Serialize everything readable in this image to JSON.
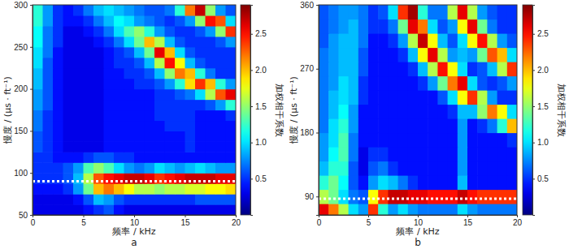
{
  "chart_data": [
    {
      "type": "heatmap",
      "label": "a",
      "x_label": "频率 / kHz",
      "y_label": "慢度 / (μs · ft⁻¹)",
      "colorbar_label": "加权相干系数",
      "xlim": [
        0,
        20
      ],
      "xticks": [
        0,
        5,
        10,
        15,
        20
      ],
      "ylim": [
        50,
        300
      ],
      "yticks": [
        50,
        100,
        150,
        200,
        250,
        300
      ],
      "colorbar_range": [
        0,
        2.9
      ],
      "colorbar_ticks": [
        0.5,
        {
          "value": 1,
          "label": "1.0"
        },
        1.5,
        {
          "value": 2,
          "label": "2.0"
        },
        2.5
      ],
      "reference_line": {
        "value": 90,
        "color": "#ffffff",
        "line_style": "dotted"
      },
      "x_edges": [
        0,
        1,
        2,
        3,
        4,
        5,
        6,
        7,
        8,
        9,
        10,
        11,
        12,
        13,
        14,
        15,
        16,
        17,
        18,
        19,
        20
      ],
      "y_edges": [
        50,
        62.5,
        75,
        87.5,
        100,
        112.5,
        125,
        137.5,
        150,
        162.5,
        175,
        187.5,
        200,
        212.5,
        225,
        237.5,
        250,
        262.5,
        275,
        287.5,
        300
      ],
      "z": [
        [
          0.3,
          0.3,
          0.3,
          0.3,
          0.3,
          0.4,
          0.5,
          0.6,
          0.4,
          0.3,
          0.3,
          0.3,
          0.3,
          0.3,
          0.3,
          0.3,
          0.3,
          0.3,
          0.3,
          0.3
        ],
        [
          0.3,
          0.3,
          0.3,
          0.3,
          0.4,
          0.6,
          0.9,
          0.8,
          0.6,
          0.5,
          0.5,
          0.5,
          0.5,
          0.5,
          0.5,
          0.5,
          0.6,
          0.6,
          0.6,
          0.6
        ],
        [
          0.4,
          0.4,
          0.4,
          0.5,
          0.8,
          1.4,
          2.0,
          2.2,
          2.0,
          1.8,
          1.6,
          1.6,
          1.5,
          1.6,
          1.6,
          1.7,
          1.7,
          1.8,
          1.8,
          1.9
        ],
        [
          0.5,
          0.5,
          0.5,
          0.6,
          0.9,
          1.6,
          2.3,
          2.5,
          2.6,
          2.7,
          2.7,
          2.6,
          2.4,
          2.5,
          2.6,
          2.7,
          2.7,
          2.7,
          2.6,
          2.6
        ],
        [
          0.5,
          0.5,
          0.5,
          0.6,
          0.8,
          1.3,
          1.5,
          1.3,
          1.0,
          0.8,
          0.7,
          0.8,
          1.0,
          0.9,
          0.8,
          0.9,
          1.0,
          0.9,
          0.8,
          0.8
        ],
        [
          0.5,
          0.5,
          0.4,
          0.4,
          0.4,
          0.5,
          0.6,
          0.6,
          0.5,
          0.5,
          0.4,
          0.4,
          0.4,
          0.4,
          0.4,
          0.4,
          0.4,
          0.4,
          0.4,
          0.4
        ],
        [
          0.6,
          0.5,
          0.4,
          0.3,
          0.3,
          0.3,
          0.3,
          0.4,
          0.4,
          0.4,
          0.4,
          0.4,
          0.4,
          0.4,
          0.4,
          0.5,
          0.4,
          0.4,
          0.4,
          0.4
        ],
        [
          0.6,
          0.5,
          0.4,
          0.3,
          0.3,
          0.3,
          0.3,
          0.4,
          0.4,
          0.4,
          0.4,
          0.4,
          0.4,
          0.4,
          0.4,
          0.5,
          0.4,
          0.4,
          0.4,
          0.4
        ],
        [
          0.7,
          0.5,
          0.4,
          0.3,
          0.3,
          0.3,
          0.3,
          0.4,
          0.4,
          0.4,
          0.4,
          0.4,
          0.4,
          0.5,
          0.5,
          0.5,
          0.4,
          0.4,
          0.4,
          0.4
        ],
        [
          0.7,
          0.5,
          0.4,
          0.3,
          0.3,
          0.3,
          0.3,
          0.4,
          0.4,
          0.4,
          0.4,
          0.4,
          0.5,
          0.5,
          0.5,
          0.5,
          0.4,
          0.4,
          0.4,
          0.5
        ],
        [
          0.8,
          0.6,
          0.4,
          0.3,
          0.3,
          0.3,
          0.3,
          0.4,
          0.4,
          0.4,
          0.4,
          0.4,
          0.5,
          0.5,
          0.5,
          0.5,
          0.5,
          0.6,
          0.8,
          1.2
        ],
        [
          0.8,
          0.6,
          0.4,
          0.3,
          0.3,
          0.3,
          0.3,
          0.4,
          0.4,
          0.4,
          0.4,
          0.4,
          0.5,
          0.5,
          0.6,
          0.7,
          1.0,
          1.6,
          2.3,
          2.6
        ],
        [
          0.9,
          0.6,
          0.4,
          0.3,
          0.3,
          0.3,
          0.3,
          0.4,
          0.4,
          0.4,
          0.5,
          0.5,
          0.6,
          0.8,
          1.2,
          1.9,
          2.4,
          2.0,
          1.2,
          0.8
        ],
        [
          0.9,
          0.6,
          0.4,
          0.3,
          0.3,
          0.3,
          0.3,
          0.4,
          0.4,
          0.5,
          0.5,
          0.6,
          0.9,
          1.5,
          2.2,
          2.0,
          1.2,
          0.7,
          0.5,
          0.5
        ],
        [
          1.0,
          0.6,
          0.4,
          0.3,
          0.3,
          0.3,
          0.3,
          0.4,
          0.5,
          0.5,
          0.6,
          0.9,
          1.6,
          2.5,
          1.8,
          0.9,
          0.6,
          0.5,
          0.5,
          0.5
        ],
        [
          1.0,
          0.7,
          0.4,
          0.3,
          0.3,
          0.3,
          0.3,
          0.4,
          0.5,
          0.6,
          0.9,
          1.4,
          2.6,
          2.0,
          1.0,
          0.6,
          0.5,
          0.5,
          0.5,
          0.5
        ],
        [
          1.1,
          0.7,
          0.5,
          0.3,
          0.3,
          0.3,
          0.4,
          0.5,
          0.7,
          1.0,
          1.4,
          2.0,
          1.6,
          0.9,
          0.6,
          0.5,
          0.5,
          0.5,
          0.6,
          0.8
        ],
        [
          1.1,
          0.7,
          0.5,
          0.3,
          0.3,
          0.4,
          0.5,
          0.7,
          1.0,
          1.3,
          1.5,
          1.2,
          0.8,
          0.6,
          0.5,
          0.5,
          0.6,
          0.8,
          1.5,
          2.4
        ],
        [
          1.2,
          0.8,
          0.5,
          0.4,
          0.4,
          0.5,
          0.7,
          0.9,
          1.1,
          1.0,
          0.8,
          0.7,
          0.6,
          0.5,
          0.6,
          0.8,
          1.5,
          2.5,
          2.3,
          1.0
        ],
        [
          1.2,
          0.8,
          0.5,
          0.4,
          0.5,
          0.7,
          0.9,
          1.0,
          0.9,
          0.8,
          0.7,
          0.6,
          0.6,
          0.7,
          1.2,
          2.2,
          2.7,
          1.5,
          0.8,
          0.6
        ]
      ]
    },
    {
      "type": "heatmap",
      "label": "b",
      "x_label": "频率 / kHz",
      "y_label": "慢度 / (μs · ft⁻¹)",
      "colorbar_label": "加权相干系数",
      "xlim": [
        0,
        20
      ],
      "xticks": [
        0,
        5,
        10,
        15,
        20
      ],
      "ylim": [
        64,
        360
      ],
      "yticks": [
        90,
        180,
        270,
        360
      ],
      "colorbar_range": [
        0,
        2.9
      ],
      "colorbar_ticks": [
        0.5,
        {
          "value": 1,
          "label": "1.0"
        },
        1.5,
        {
          "value": 2,
          "label": "2.0"
        },
        2.5
      ],
      "reference_line": {
        "value": 87,
        "color": "#ffffff",
        "line_style": "dotted"
      },
      "x_edges": [
        0,
        1,
        2,
        3,
        4,
        5,
        6,
        7,
        8,
        9,
        10,
        11,
        12,
        13,
        14,
        15,
        16,
        17,
        18,
        19,
        20
      ],
      "y_edges": [
        64,
        80,
        100,
        120,
        140,
        160,
        180,
        200,
        220,
        240,
        260,
        280,
        300,
        320,
        340,
        360
      ],
      "z": [
        [
          2.6,
          2.2,
          1.6,
          1.0,
          0.8,
          2.4,
          1.2,
          0.8,
          1.0,
          0.8,
          0.7,
          0.7,
          0.7,
          0.7,
          1.0,
          0.8,
          0.7,
          0.7,
          0.7,
          0.7
        ],
        [
          1.6,
          1.4,
          1.0,
          0.7,
          0.6,
          1.8,
          2.4,
          2.7,
          2.7,
          2.6,
          2.6,
          2.5,
          2.5,
          2.5,
          2.7,
          2.5,
          2.4,
          2.4,
          2.4,
          2.4
        ],
        [
          1.2,
          1.4,
          1.1,
          0.6,
          0.4,
          0.8,
          1.0,
          0.9,
          0.7,
          0.5,
          0.4,
          0.4,
          0.4,
          0.4,
          0.9,
          0.4,
          0.4,
          0.4,
          0.4,
          0.4
        ],
        [
          0.9,
          1.2,
          1.2,
          0.6,
          0.3,
          0.6,
          0.7,
          0.5,
          0.4,
          0.4,
          0.4,
          0.4,
          0.4,
          0.4,
          0.8,
          0.4,
          0.4,
          0.4,
          0.4,
          0.4
        ],
        [
          0.8,
          1.1,
          1.3,
          0.7,
          0.3,
          0.5,
          0.5,
          0.4,
          0.4,
          0.4,
          0.4,
          0.4,
          0.4,
          0.4,
          0.8,
          0.4,
          0.4,
          0.4,
          0.4,
          0.4
        ],
        [
          0.8,
          1.0,
          1.3,
          0.7,
          0.4,
          0.4,
          0.4,
          0.4,
          0.4,
          0.4,
          0.4,
          0.4,
          0.4,
          0.4,
          0.8,
          0.4,
          0.4,
          0.4,
          0.4,
          0.5
        ],
        [
          0.7,
          1.0,
          1.2,
          0.8,
          0.4,
          0.4,
          0.4,
          0.4,
          0.4,
          0.4,
          0.4,
          0.4,
          0.4,
          0.4,
          0.8,
          0.4,
          0.5,
          0.7,
          1.2,
          2.0
        ],
        [
          0.7,
          0.9,
          1.1,
          0.8,
          0.4,
          0.4,
          0.4,
          0.4,
          0.4,
          0.4,
          0.4,
          0.4,
          0.4,
          0.5,
          0.9,
          0.9,
          1.5,
          2.2,
          1.8,
          1.0
        ],
        [
          0.7,
          0.9,
          1.0,
          0.9,
          0.5,
          0.4,
          0.4,
          0.4,
          0.4,
          0.4,
          0.4,
          0.4,
          0.6,
          1.0,
          1.8,
          2.4,
          1.6,
          0.8,
          0.5,
          0.5
        ],
        [
          0.7,
          0.8,
          1.0,
          0.9,
          0.5,
          0.4,
          0.4,
          0.4,
          0.4,
          0.4,
          0.5,
          0.8,
          1.4,
          2.2,
          2.6,
          1.0,
          0.6,
          0.5,
          0.6,
          0.8
        ],
        [
          0.7,
          0.8,
          0.9,
          0.9,
          0.6,
          0.4,
          0.4,
          0.4,
          0.4,
          0.5,
          0.9,
          1.6,
          2.5,
          1.8,
          1.0,
          0.5,
          0.6,
          0.9,
          1.6,
          2.4
        ],
        [
          0.7,
          0.8,
          0.9,
          0.9,
          0.6,
          0.4,
          0.4,
          0.4,
          0.5,
          0.9,
          1.8,
          2.6,
          1.6,
          0.8,
          0.9,
          0.8,
          1.4,
          2.3,
          2.0,
          1.0
        ],
        [
          0.6,
          0.8,
          0.9,
          0.9,
          0.7,
          0.4,
          0.4,
          0.5,
          0.8,
          1.6,
          2.7,
          1.8,
          0.9,
          0.6,
          1.0,
          1.8,
          2.5,
          1.6,
          0.8,
          0.6
        ],
        [
          0.6,
          0.7,
          0.8,
          0.9,
          0.7,
          0.5,
          0.5,
          0.7,
          1.4,
          2.6,
          2.2,
          1.0,
          0.6,
          0.8,
          1.8,
          2.6,
          1.4,
          0.7,
          0.5,
          0.5
        ],
        [
          0.6,
          0.7,
          0.8,
          0.8,
          0.7,
          0.5,
          0.6,
          1.0,
          2.4,
          2.8,
          1.2,
          0.7,
          0.7,
          1.6,
          2.6,
          1.6,
          0.8,
          0.6,
          0.5,
          0.5
        ]
      ]
    }
  ]
}
